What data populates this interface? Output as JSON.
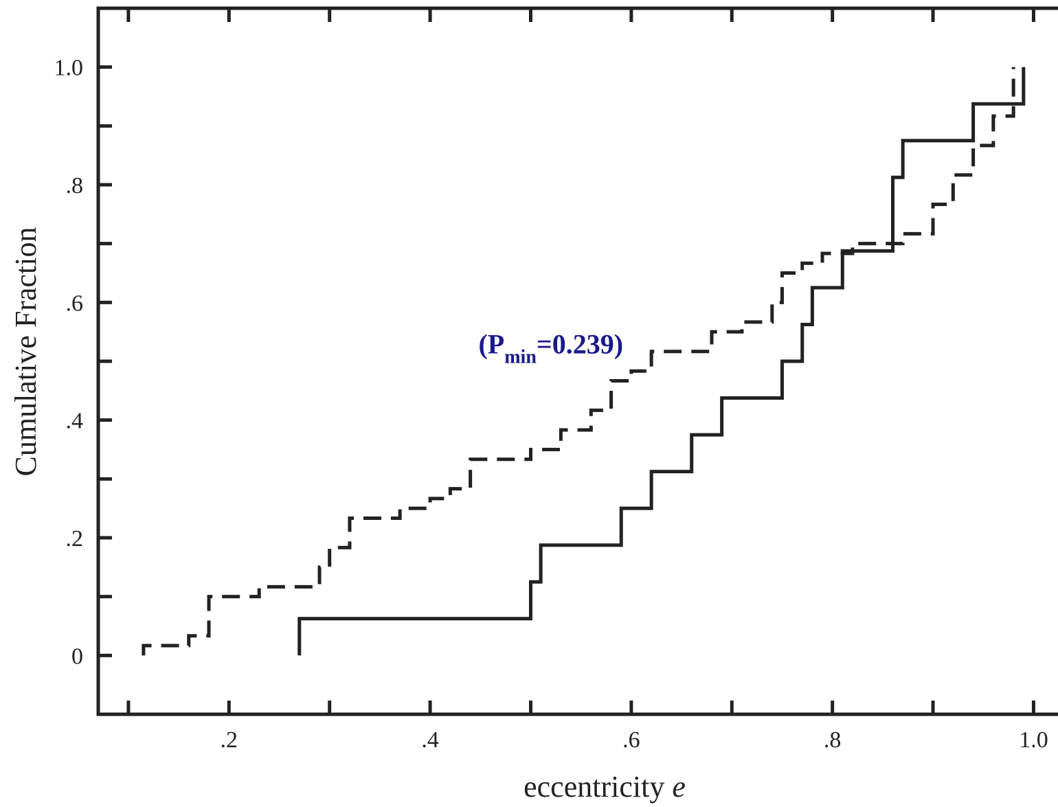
{
  "chart_data": {
    "type": "line",
    "step": true,
    "xlabel": "eccentricity",
    "xlabel_symbol": "e",
    "ylabel": "Cumulative Fraction",
    "xlim": [
      0.07,
      1.04
    ],
    "ylim": [
      -0.1,
      1.1
    ],
    "x_ticks": [
      0.2,
      0.4,
      0.6,
      0.8,
      1.0
    ],
    "x_tick_labels": [
      ".2",
      ".4",
      ".6",
      ".8",
      "1.0"
    ],
    "x_minor_ticks": [
      0.1,
      0.3,
      0.5,
      0.7,
      0.9
    ],
    "y_ticks": [
      0,
      0.2,
      0.4,
      0.6,
      0.8,
      1.0
    ],
    "y_tick_labels": [
      "0",
      ".2",
      ".4",
      ".6",
      ".8",
      "1.0"
    ],
    "y_minor_ticks": [
      0.1,
      0.3,
      0.5,
      0.7,
      0.9
    ],
    "annotation": {
      "prefix": "(P",
      "subscript": "min",
      "suffix": "=0.239)",
      "x": 0.52,
      "y": 0.53,
      "color": "#1a1a8c"
    },
    "series": [
      {
        "style": "solid",
        "color": "#222222",
        "x": [
          0.27,
          0.5,
          0.51,
          0.59,
          0.62,
          0.66,
          0.69,
          0.75,
          0.77,
          0.78,
          0.81,
          0.86,
          0.87,
          0.94,
          0.99
        ],
        "y": [
          0.0625,
          0.125,
          0.1875,
          0.25,
          0.3125,
          0.375,
          0.4375,
          0.5,
          0.5625,
          0.625,
          0.6875,
          0.8125,
          0.875,
          0.9375,
          1.0
        ]
      },
      {
        "style": "dashed",
        "color": "#222222",
        "x": [
          0.115,
          0.16,
          0.18,
          0.23,
          0.29,
          0.3,
          0.32,
          0.37,
          0.4,
          0.42,
          0.44,
          0.5,
          0.53,
          0.56,
          0.58,
          0.6,
          0.62,
          0.68,
          0.71,
          0.74,
          0.75,
          0.77,
          0.79,
          0.82,
          0.87,
          0.9,
          0.92,
          0.94,
          0.96,
          0.98
        ],
        "y": [
          0.0167,
          0.0333,
          0.1,
          0.1167,
          0.15,
          0.1833,
          0.2333,
          0.25,
          0.2667,
          0.2833,
          0.3333,
          0.35,
          0.3833,
          0.4167,
          0.4667,
          0.4833,
          0.5167,
          0.55,
          0.5667,
          0.6,
          0.65,
          0.6667,
          0.6833,
          0.7,
          0.7167,
          0.7667,
          0.8167,
          0.8667,
          0.9167,
          1.0
        ]
      }
    ]
  }
}
